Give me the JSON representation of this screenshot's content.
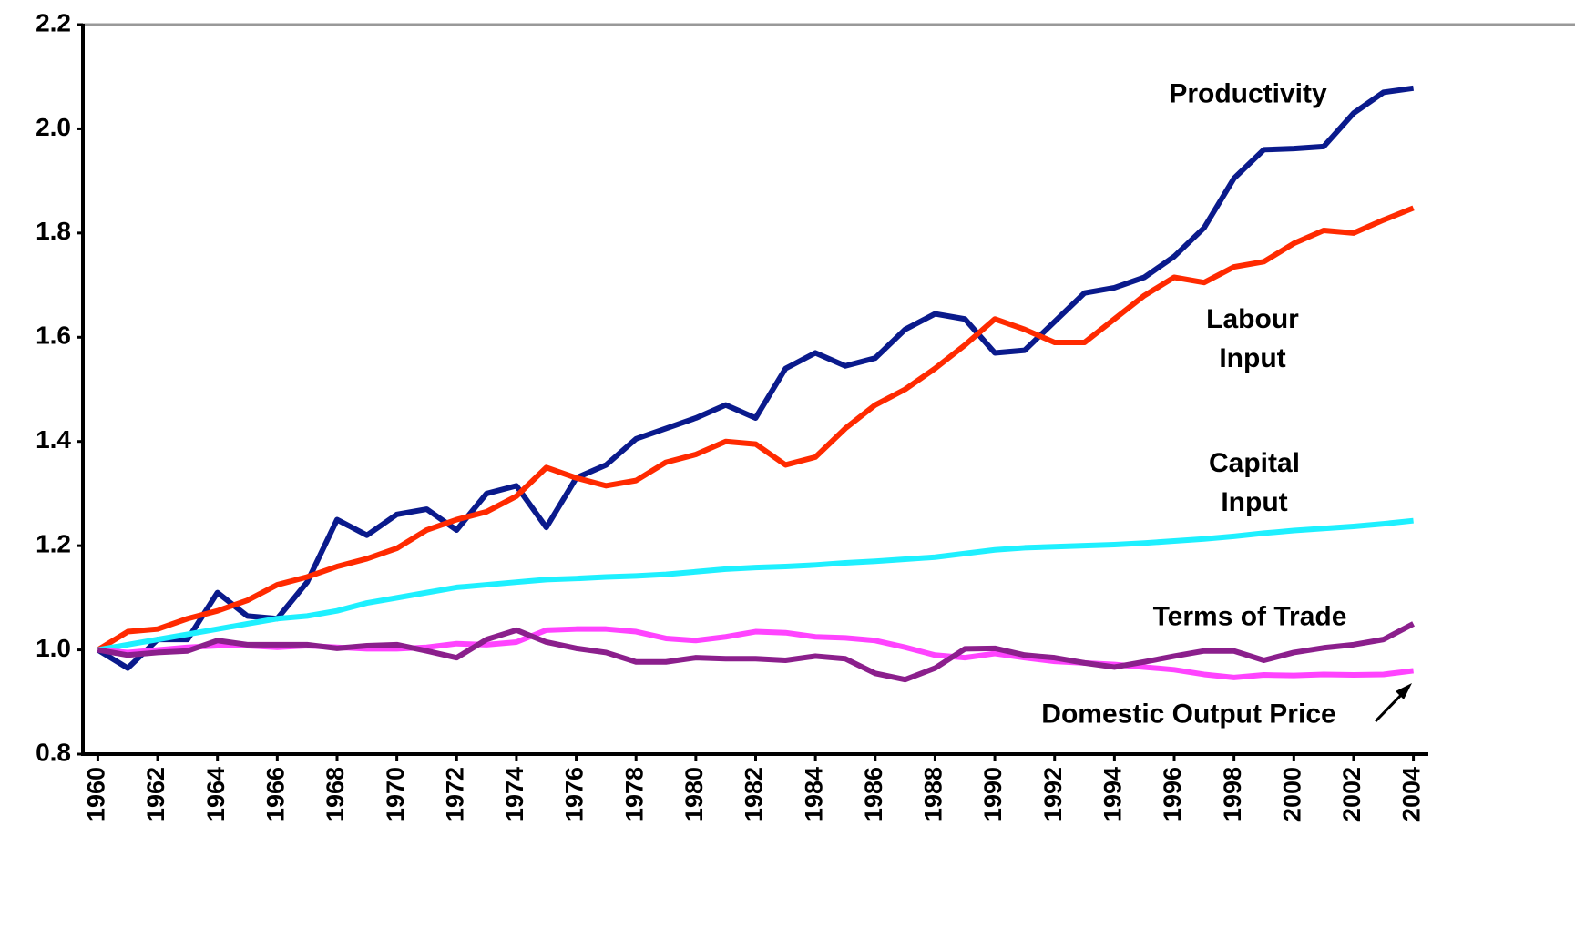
{
  "chart_data": {
    "type": "line",
    "x": [
      1960,
      1961,
      1962,
      1963,
      1964,
      1965,
      1966,
      1967,
      1968,
      1969,
      1970,
      1971,
      1972,
      1973,
      1974,
      1975,
      1976,
      1977,
      1978,
      1979,
      1980,
      1981,
      1982,
      1983,
      1984,
      1985,
      1986,
      1987,
      1988,
      1989,
      1990,
      1991,
      1992,
      1993,
      1994,
      1995,
      1996,
      1997,
      1998,
      1999,
      2000,
      2001,
      2002,
      2003,
      2004
    ],
    "xlim": [
      1959.5,
      2004.5
    ],
    "xticks": [
      1960,
      1962,
      1964,
      1966,
      1968,
      1970,
      1972,
      1974,
      1976,
      1978,
      1980,
      1982,
      1984,
      1986,
      1988,
      1990,
      1992,
      1994,
      1996,
      1998,
      2000,
      2002,
      2004
    ],
    "ylim": [
      0.8,
      2.2
    ],
    "yticks": [
      0.8,
      {
        "value": 1,
        "label": "1.0"
      },
      1.2,
      1.4,
      1.6,
      1.8,
      {
        "value": 2,
        "label": "2.0"
      },
      2.2
    ],
    "grid": false,
    "series": [
      {
        "name": "Productivity",
        "color": "#0a1a8c",
        "values": [
          1.0,
          0.965,
          1.02,
          1.02,
          1.11,
          1.065,
          1.06,
          1.13,
          1.25,
          1.22,
          1.26,
          1.27,
          1.23,
          1.3,
          1.315,
          1.235,
          1.33,
          1.355,
          1.405,
          1.425,
          1.445,
          1.47,
          1.445,
          1.54,
          1.57,
          1.545,
          1.56,
          1.615,
          1.645,
          1.635,
          1.57,
          1.575,
          1.63,
          1.685,
          1.695,
          1.715,
          1.755,
          1.81,
          1.905,
          1.96,
          1.962,
          1.966,
          2.03,
          2.07,
          2.078
        ]
      },
      {
        "name": "Labour Input",
        "color": "#ff2a00",
        "values": [
          1.0,
          1.035,
          1.04,
          1.06,
          1.075,
          1.095,
          1.125,
          1.14,
          1.16,
          1.175,
          1.195,
          1.23,
          1.25,
          1.265,
          1.295,
          1.35,
          1.33,
          1.315,
          1.325,
          1.36,
          1.375,
          1.4,
          1.395,
          1.355,
          1.37,
          1.425,
          1.47,
          1.5,
          1.54,
          1.585,
          1.635,
          1.615,
          1.59,
          1.59,
          1.635,
          1.68,
          1.715,
          1.705,
          1.735,
          1.745,
          1.78,
          1.805,
          1.8,
          1.825,
          1.848
        ]
      },
      {
        "name": "Capital Input",
        "color": "#1ef0ff",
        "values": [
          1.0,
          1.01,
          1.02,
          1.03,
          1.04,
          1.05,
          1.06,
          1.065,
          1.075,
          1.09,
          1.1,
          1.11,
          1.12,
          1.125,
          1.13,
          1.135,
          1.137,
          1.14,
          1.142,
          1.145,
          1.15,
          1.155,
          1.158,
          1.16,
          1.163,
          1.167,
          1.17,
          1.174,
          1.178,
          1.185,
          1.192,
          1.196,
          1.198,
          1.2,
          1.202,
          1.205,
          1.209,
          1.213,
          1.218,
          1.224,
          1.229,
          1.233,
          1.237,
          1.242,
          1.248
        ]
      },
      {
        "name": "Domestic Output Price",
        "color": "#ff44ff",
        "values": [
          1.0,
          0.995,
          1.0,
          1.005,
          1.008,
          1.008,
          1.005,
          1.008,
          1.005,
          1.002,
          1.002,
          1.005,
          1.012,
          1.01,
          1.015,
          1.038,
          1.04,
          1.04,
          1.035,
          1.022,
          1.018,
          1.025,
          1.035,
          1.033,
          1.025,
          1.023,
          1.018,
          1.005,
          0.99,
          0.985,
          0.993,
          0.985,
          0.978,
          0.975,
          0.972,
          0.967,
          0.962,
          0.953,
          0.947,
          0.952,
          0.951,
          0.953,
          0.952,
          0.953,
          0.96
        ]
      },
      {
        "name": "Terms of Trade",
        "color": "#8b1f8c",
        "values": [
          1.0,
          0.99,
          0.995,
          0.998,
          1.018,
          1.01,
          1.01,
          1.01,
          1.003,
          1.008,
          1.01,
          0.998,
          0.985,
          1.02,
          1.038,
          1.015,
          1.003,
          0.995,
          0.977,
          0.977,
          0.985,
          0.983,
          0.983,
          0.98,
          0.988,
          0.983,
          0.955,
          0.943,
          0.965,
          1.002,
          1.003,
          0.99,
          0.985,
          0.975,
          0.967,
          0.977,
          0.988,
          0.998,
          0.998,
          0.98,
          0.995,
          1.004,
          1.01,
          1.02,
          1.05
        ]
      }
    ]
  }
}
